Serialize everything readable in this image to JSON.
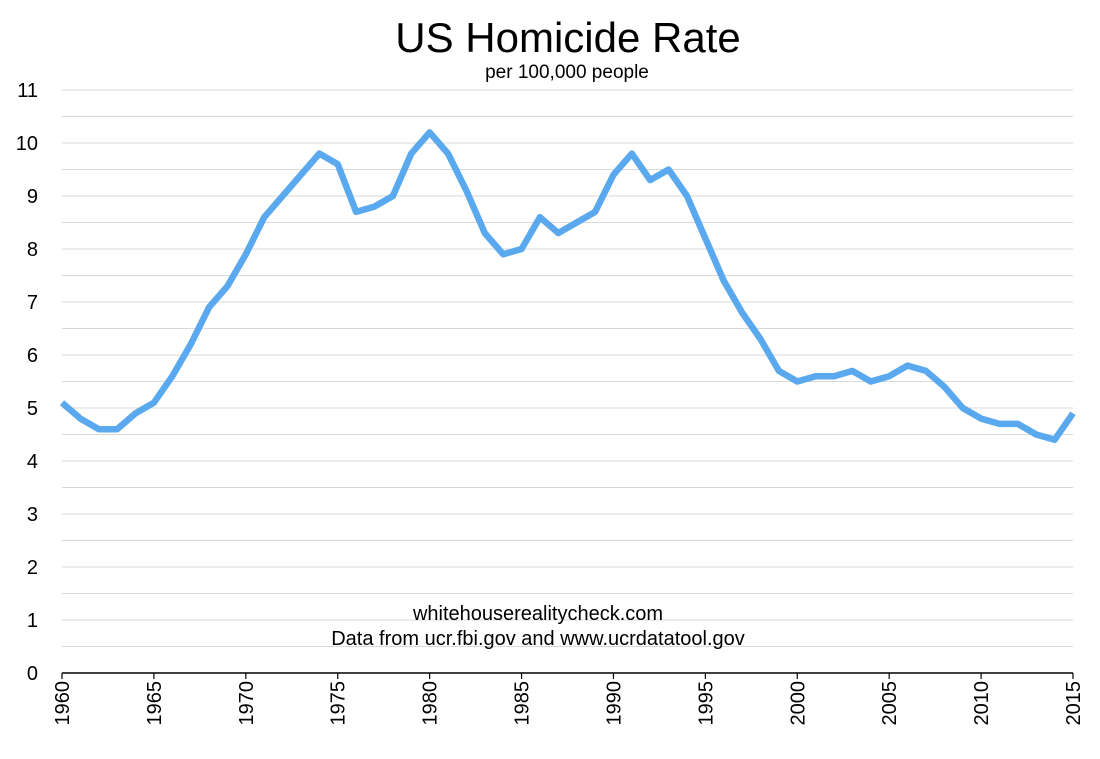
{
  "chart_data": {
    "type": "line",
    "title": "US Homicide Rate",
    "subtitle": "per 100,000 people",
    "xlabel": "",
    "ylabel": "",
    "xlim": [
      1960,
      2015
    ],
    "ylim": [
      0,
      11
    ],
    "grid": true,
    "legend": "none",
    "x_tick_labels": [
      "1960",
      "1965",
      "1970",
      "1975",
      "1980",
      "1985",
      "1990",
      "1995",
      "2000",
      "2005",
      "2010",
      "2015"
    ],
    "y_tick_labels": [
      "0",
      "1",
      "2",
      "3",
      "4",
      "5",
      "6",
      "7",
      "8",
      "9",
      "10",
      "11"
    ],
    "series": [
      {
        "color": "#5aa9ef",
        "x": [
          1960,
          1961,
          1962,
          1963,
          1964,
          1965,
          1966,
          1967,
          1968,
          1969,
          1970,
          1971,
          1972,
          1973,
          1974,
          1975,
          1976,
          1977,
          1978,
          1979,
          1980,
          1981,
          1982,
          1983,
          1984,
          1985,
          1986,
          1987,
          1988,
          1989,
          1990,
          1991,
          1992,
          1993,
          1994,
          1995,
          1996,
          1997,
          1998,
          1999,
          2000,
          2001,
          2002,
          2003,
          2004,
          2005,
          2006,
          2007,
          2008,
          2009,
          2010,
          2011,
          2012,
          2013,
          2014,
          2015
        ],
        "y": [
          5.1,
          4.8,
          4.6,
          4.6,
          4.9,
          5.1,
          5.6,
          6.2,
          6.9,
          7.3,
          7.9,
          8.6,
          9.0,
          9.4,
          9.8,
          9.6,
          8.7,
          8.8,
          9.0,
          9.8,
          10.2,
          9.8,
          9.1,
          8.3,
          7.9,
          8.0,
          8.6,
          8.3,
          8.5,
          8.7,
          9.4,
          9.8,
          9.3,
          9.5,
          9.0,
          8.2,
          7.4,
          6.8,
          6.3,
          5.7,
          5.5,
          5.6,
          5.6,
          5.7,
          5.5,
          5.6,
          5.8,
          5.7,
          5.4,
          5.0,
          4.8,
          4.7,
          4.7,
          4.5,
          4.4,
          4.9
        ]
      }
    ],
    "annotations": [
      "whitehouserealitycheck.com",
      "Data from ucr.fbi.gov and www.ucrdatatool.gov"
    ]
  }
}
